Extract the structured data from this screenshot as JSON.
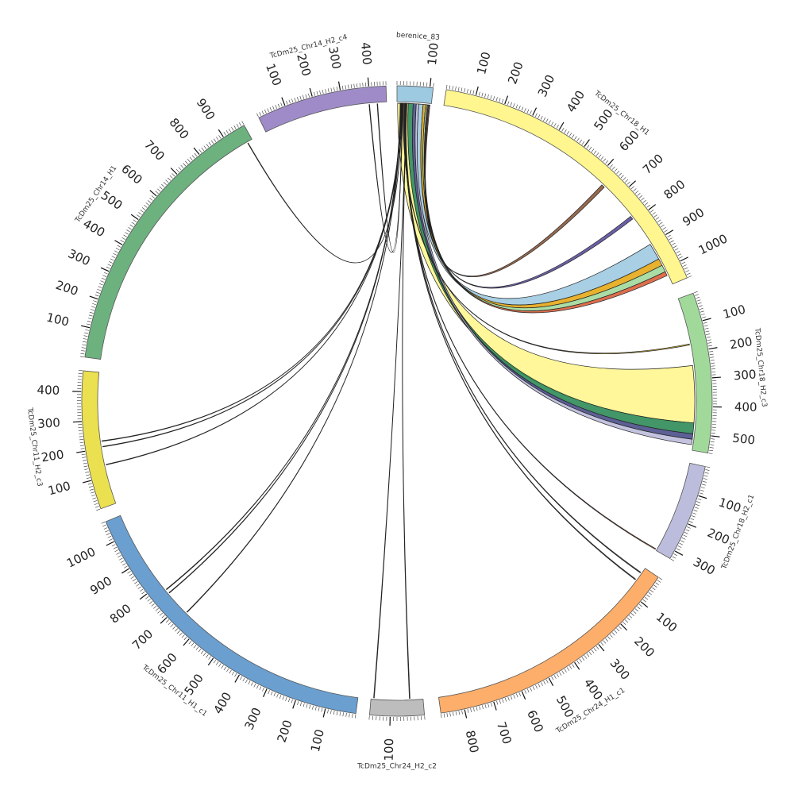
{
  "segments": [
    {
      "id": "berenice_83",
      "label": "berenice_83",
      "length": 110,
      "color": "#9ecae1",
      "ticks": [
        100
      ]
    },
    {
      "id": "chr18_h1",
      "label": "TcDm25_Chr18_H1",
      "length": 1060,
      "color": "#fff68f",
      "ticks": [
        100,
        200,
        300,
        400,
        500,
        600,
        700,
        800,
        900,
        1000
      ]
    },
    {
      "id": "chr18_h2_c3",
      "label": "TcDm25_Chr18_H2_c3",
      "length": 560,
      "color": "#a1d99b",
      "ticks": [
        100,
        200,
        300,
        400,
        500
      ]
    },
    {
      "id": "chr18_h2_c1",
      "label": "TcDm25_Chr18_H2_c1",
      "length": 330,
      "color": "#bcbddc",
      "ticks": [
        100,
        200,
        300
      ]
    },
    {
      "id": "chr24_h1_c1",
      "label": "TcDm25_Chr24_H1_c1",
      "length": 880,
      "color": "#fdae6b",
      "ticks": [
        100,
        200,
        300,
        400,
        500,
        600,
        700,
        800
      ]
    },
    {
      "id": "chr24_h2_c2",
      "label": "TcDm25_Chr24_H2_c2",
      "length": 160,
      "color": "#bdbdbd",
      "ticks": [
        100
      ]
    },
    {
      "id": "chr11_h1_c1",
      "label": "TcDm25_Chr11_H1_c1",
      "length": 1070,
      "color": "#6a9fd0",
      "ticks": [
        100,
        200,
        300,
        400,
        500,
        600,
        700,
        800,
        900,
        1000
      ]
    },
    {
      "id": "chr11_h2_c3",
      "label": "TcDm25_Chr11_H2_c3",
      "length": 470,
      "color": "#ebe050",
      "ticks": [
        100,
        200,
        300,
        400
      ]
    },
    {
      "id": "chr14_h1",
      "label": "TcDm25_Chr14_H1",
      "length": 980,
      "color": "#6db17f",
      "ticks": [
        100,
        200,
        300,
        400,
        500,
        600,
        700,
        800,
        900
      ]
    },
    {
      "id": "chr14_h2_c4",
      "label": "TcDm25_Chr14_H2_c4",
      "length": 460,
      "color": "#9e8bc7",
      "ticks": [
        100,
        200,
        300,
        400
      ]
    }
  ],
  "links": [
    {
      "from": "berenice_83",
      "from_start": 2,
      "from_end": 36,
      "to": "chr18_h2_c3",
      "to_start": 250,
      "to_end": 460,
      "color": "#fff68f"
    },
    {
      "from": "berenice_83",
      "from_start": 36,
      "from_end": 52,
      "to": "chr18_h2_c3",
      "to_start": 460,
      "to_end": 500,
      "color": "#2e8b57"
    },
    {
      "from": "berenice_83",
      "from_start": 52,
      "from_end": 62,
      "to": "chr18_h2_c3",
      "to_start": 500,
      "to_end": 520,
      "color": "#4b4f8a"
    },
    {
      "from": "berenice_83",
      "from_start": 62,
      "from_end": 70,
      "to": "chr18_h2_c3",
      "to_start": 520,
      "to_end": 540,
      "color": "#bcbddc"
    },
    {
      "from": "berenice_83",
      "from_start": 70,
      "from_end": 84,
      "to": "chr18_h1",
      "to_start": 900,
      "to_end": 960,
      "color": "#9ecae1"
    },
    {
      "from": "berenice_83",
      "from_start": 84,
      "from_end": 92,
      "to": "chr18_h1",
      "to_start": 960,
      "to_end": 985,
      "color": "#e6a817"
    },
    {
      "from": "berenice_83",
      "from_start": 92,
      "from_end": 97,
      "to": "chr18_h1",
      "to_start": 985,
      "to_end": 1010,
      "color": "#a1d99b"
    },
    {
      "from": "berenice_83",
      "from_start": 97,
      "from_end": 100,
      "to": "chr18_h1",
      "to_start": 1010,
      "to_end": 1025,
      "color": "#d95f3b"
    },
    {
      "from": "berenice_83",
      "from_start": 100,
      "from_end": 103,
      "to": "chr18_h1",
      "to_start": 780,
      "to_end": 792,
      "color": "#5b4f9a"
    },
    {
      "from": "berenice_83",
      "from_start": 103,
      "from_end": 106,
      "to": "chr18_h1",
      "to_start": 630,
      "to_end": 642,
      "color": "#8c5a3c"
    },
    {
      "from": "berenice_83",
      "from_start": 20,
      "from_end": 22,
      "to": "chr18_h2_c3",
      "to_start": 170,
      "to_end": 174,
      "color": "#e6c229"
    },
    {
      "from": "berenice_83",
      "from_start": 24,
      "from_end": 26,
      "to": "chr18_h2_c1",
      "to_start": 325,
      "to_end": 328,
      "color": "#d95f3b"
    },
    {
      "from": "berenice_83",
      "from_start": 26,
      "from_end": 28,
      "to": "chr24_h1_c1",
      "to_start": 50,
      "to_end": 53,
      "color": "#444444"
    },
    {
      "from": "berenice_83",
      "from_start": 28,
      "from_end": 30,
      "to": "chr24_h1_c1",
      "to_start": 20,
      "to_end": 23,
      "color": "#444444"
    },
    {
      "from": "berenice_83",
      "from_start": 30,
      "from_end": 31,
      "to": "chr24_h2_c2",
      "to_start": 40,
      "to_end": 42,
      "color": "#2e6b9a"
    },
    {
      "from": "berenice_83",
      "from_start": 31,
      "from_end": 32,
      "to": "chr24_h2_c2",
      "to_start": 150,
      "to_end": 152,
      "color": "#2e6b9a"
    },
    {
      "from": "berenice_83",
      "from_start": 10,
      "from_end": 11,
      "to": "chr11_h1_c1",
      "to_start": 770,
      "to_end": 772,
      "color": "#d95f3b"
    },
    {
      "from": "berenice_83",
      "from_start": 11,
      "from_end": 12,
      "to": "chr11_h1_c1",
      "to_start": 755,
      "to_end": 757,
      "color": "#d95f3b"
    },
    {
      "from": "berenice_83",
      "from_start": 12,
      "from_end": 13,
      "to": "chr11_h1_c1",
      "to_start": 665,
      "to_end": 667,
      "color": "#b8a030"
    },
    {
      "from": "berenice_83",
      "from_start": 13,
      "from_end": 14,
      "to": "chr11_h2_c3",
      "to_start": 225,
      "to_end": 227,
      "color": "#2e6b9a"
    },
    {
      "from": "berenice_83",
      "from_start": 14,
      "from_end": 15,
      "to": "chr11_h2_c3",
      "to_start": 140,
      "to_end": 142,
      "color": "#2e6b9a"
    },
    {
      "from": "berenice_83",
      "from_start": 15,
      "from_end": 16,
      "to": "chr11_h2_c3",
      "to_start": 205,
      "to_end": 207,
      "color": "#2e6b9a"
    },
    {
      "from": "berenice_83",
      "from_start": 16,
      "from_end": 17,
      "to": "chr14_h1",
      "to_start": 960,
      "to_end": 962,
      "color": "#b8a030"
    },
    {
      "from": "berenice_83",
      "from_start": 17,
      "from_end": 18,
      "to": "chr14_h2_c4",
      "to_start": 425,
      "to_end": 427,
      "color": "#2e6b9a"
    },
    {
      "from": "berenice_83",
      "from_start": 18,
      "from_end": 19,
      "to": "chr14_h2_c4",
      "to_start": 395,
      "to_end": 397,
      "color": "#d95f3b"
    }
  ]
}
